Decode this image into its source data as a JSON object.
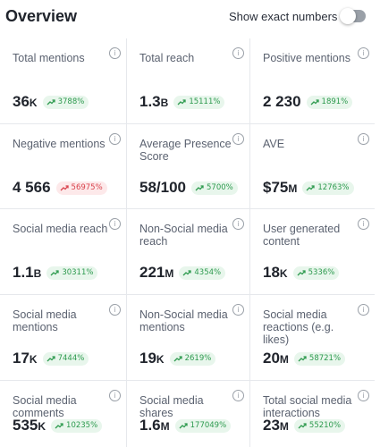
{
  "header": {
    "title": "Overview",
    "toggle_label": "Show exact numbers",
    "toggle_on": false
  },
  "colors": {
    "positive": "#2d9a4e",
    "negative": "#d9434d",
    "border": "#e6e8ec"
  },
  "cards": [
    {
      "label": "Total mentions",
      "value": "36",
      "unit": "K",
      "change": "3788%",
      "trend": "up"
    },
    {
      "label": "Total reach",
      "value": "1.3",
      "unit": "B",
      "change": "15111%",
      "trend": "up"
    },
    {
      "label": "Positive mentions",
      "value": "2 230",
      "unit": "",
      "change": "1891%",
      "trend": "up"
    },
    {
      "label": "Negative mentions",
      "value": "4 566",
      "unit": "",
      "change": "56975%",
      "trend": "up-negative"
    },
    {
      "label": "Average Presence Score",
      "value": "58/100",
      "unit": "",
      "change": "5700%",
      "trend": "up"
    },
    {
      "label": "AVE",
      "value": "$75",
      "unit": "M",
      "change": "12763%",
      "trend": "up"
    },
    {
      "label": "Social media reach",
      "value": "1.1",
      "unit": "B",
      "change": "30311%",
      "trend": "up"
    },
    {
      "label": "Non-Social media reach",
      "value": "221",
      "unit": "M",
      "change": "4354%",
      "trend": "up"
    },
    {
      "label": "User generated content",
      "value": "18",
      "unit": "K",
      "change": "5336%",
      "trend": "up"
    },
    {
      "label": "Social media mentions",
      "value": "17",
      "unit": "K",
      "change": "7444%",
      "trend": "up"
    },
    {
      "label": "Non-Social media mentions",
      "value": "19",
      "unit": "K",
      "change": "2619%",
      "trend": "up"
    },
    {
      "label": "Social media reactions (e.g. likes)",
      "value": "20",
      "unit": "M",
      "change": "58721%",
      "trend": "up"
    },
    {
      "label": "Social media comments",
      "value": "535",
      "unit": "K",
      "change": "10235%",
      "trend": "up"
    },
    {
      "label": "Social media shares",
      "value": "1.6",
      "unit": "M",
      "change": "177049%",
      "trend": "up"
    },
    {
      "label": "Total social media interactions",
      "value": "23",
      "unit": "M",
      "change": "55210%",
      "trend": "up"
    }
  ]
}
